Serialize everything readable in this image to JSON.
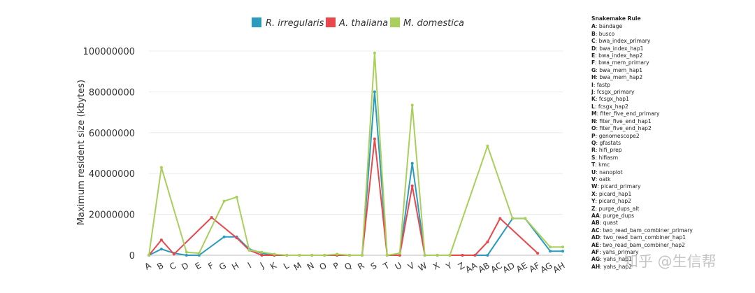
{
  "chart_data": {
    "type": "line",
    "title": "",
    "xlabel": "",
    "ylabel": "Maximum resident size (kbytes)",
    "ylim": [
      0,
      100000000
    ],
    "yticks": [
      "0",
      "20000000",
      "40000000",
      "60000000",
      "80000000",
      "100000000"
    ],
    "ytick_values": [
      0,
      20000000,
      40000000,
      60000000,
      80000000,
      100000000
    ],
    "grid": true,
    "legend_position": "top-center",
    "categories": [
      "A",
      "B",
      "C",
      "D",
      "E",
      "F",
      "G",
      "H",
      "I",
      "J",
      "K",
      "L",
      "M",
      "N",
      "O",
      "P",
      "Q",
      "R",
      "S",
      "T",
      "U",
      "V",
      "W",
      "X",
      "Y",
      "Z",
      "AA",
      "AB",
      "AC",
      "AD",
      "AE",
      "AF",
      "AG",
      "AH"
    ],
    "series": [
      {
        "name": "R. irregularis",
        "color": "#2a9bbd",
        "values": [
          0,
          3000000,
          1000000,
          0,
          0,
          null,
          9000000,
          9000000,
          3000000,
          1000000,
          0,
          0,
          0,
          0,
          0,
          0,
          0,
          0,
          80000000,
          0,
          0,
          45000000,
          0,
          0,
          0,
          0,
          0,
          0,
          null,
          18000000,
          18000000,
          null,
          2000000,
          2000000
        ]
      },
      {
        "name": "A. thaliana",
        "color": "#e8484b",
        "values": [
          0,
          7500000,
          500000,
          null,
          null,
          18500000,
          null,
          8500000,
          2500000,
          0,
          0,
          0,
          0,
          0,
          0,
          0,
          0,
          0,
          57000000,
          0,
          0,
          34000000,
          0,
          0,
          0,
          0,
          0,
          6500000,
          18000000,
          null,
          null,
          1000000,
          null,
          null
        ]
      },
      {
        "name": "M. domestica",
        "color": "#a9d05b",
        "values": [
          0,
          43000000,
          null,
          1500000,
          1000000,
          null,
          26500000,
          28500000,
          2500000,
          1500000,
          500000,
          0,
          0,
          0,
          0,
          500000,
          0,
          0,
          99000000,
          0,
          1000000,
          73500000,
          0,
          0,
          0,
          null,
          null,
          53500000,
          null,
          18000000,
          18000000,
          null,
          4000000,
          4000000
        ]
      }
    ]
  },
  "legend": {
    "s1_label": "R. irregularis",
    "s2_label": "A. thaliana",
    "s3_label": "M. domestica"
  },
  "rules": {
    "title": "Snakemake Rule",
    "items": [
      {
        "key": "A",
        "name": "bandage"
      },
      {
        "key": "B",
        "name": "busco"
      },
      {
        "key": "C",
        "name": "bwa_index_primary"
      },
      {
        "key": "D",
        "name": "bwa_index_hap1"
      },
      {
        "key": "E",
        "name": "bwa_index_hap2"
      },
      {
        "key": "F",
        "name": "bwa_mem_primary"
      },
      {
        "key": "G",
        "name": "bwa_mem_hap1"
      },
      {
        "key": "H",
        "name": "bwa_mem_hap2"
      },
      {
        "key": "I",
        "name": "fastp"
      },
      {
        "key": "J",
        "name": "fcsgx_primary"
      },
      {
        "key": "K",
        "name": "fcsgx_hap1"
      },
      {
        "key": "L",
        "name": "fcsgx_hap2"
      },
      {
        "key": "M",
        "name": "fiter_five_end_primary"
      },
      {
        "key": "N",
        "name": "fiter_five_end_hap1"
      },
      {
        "key": "O",
        "name": "fiter_five_end_hap2"
      },
      {
        "key": "P",
        "name": "genomescope2"
      },
      {
        "key": "Q",
        "name": "gfastats"
      },
      {
        "key": "R",
        "name": "hifi_prep"
      },
      {
        "key": "S",
        "name": "hifiasm"
      },
      {
        "key": "T",
        "name": "kmc"
      },
      {
        "key": "U",
        "name": "nanoplot"
      },
      {
        "key": "V",
        "name": "oatk"
      },
      {
        "key": "W",
        "name": "picard_primary"
      },
      {
        "key": "X",
        "name": "picard_hap1"
      },
      {
        "key": "Y",
        "name": "picard_hap2"
      },
      {
        "key": "Z",
        "name": "purge_dups_alt"
      },
      {
        "key": "AA",
        "name": "purge_dups"
      },
      {
        "key": "AB",
        "name": "quast"
      },
      {
        "key": "AC",
        "name": "two_read_bam_combiner_primary"
      },
      {
        "key": "AD",
        "name": "two_read_bam_combiner_hap1"
      },
      {
        "key": "AE",
        "name": "two_read_bam_combiner_hap2"
      },
      {
        "key": "AF",
        "name": "yahs_primary"
      },
      {
        "key": "AG",
        "name": "yahs_hap1"
      },
      {
        "key": "AH",
        "name": "yahs_hap2"
      }
    ]
  },
  "watermark": "知乎 @生信帮"
}
